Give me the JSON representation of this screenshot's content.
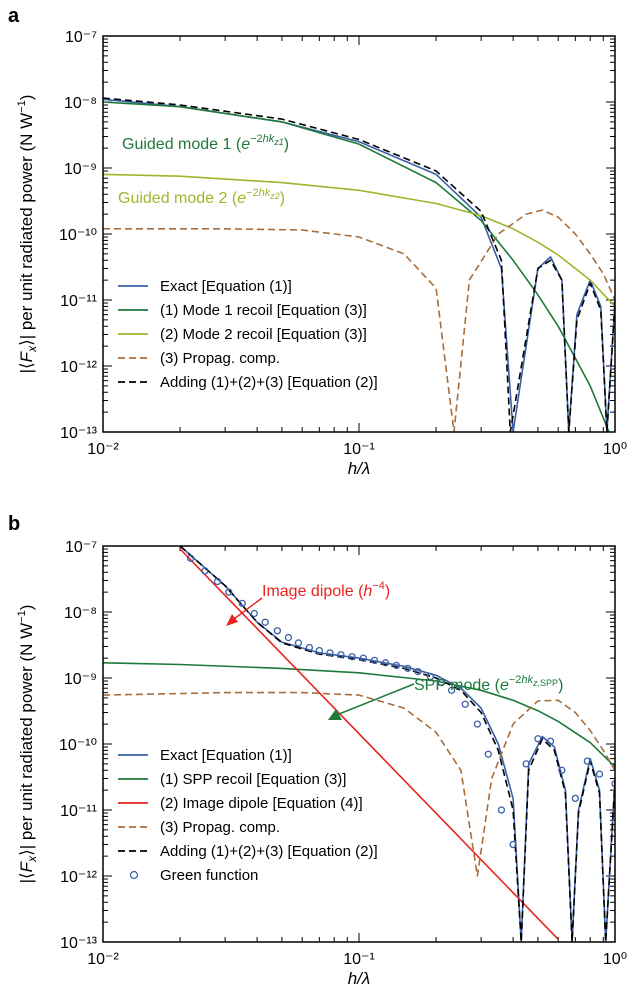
{
  "chart_data": [
    {
      "panel_label": "a",
      "type": "line",
      "xlabel": "h/λ",
      "ylabel": "|⟨F_x⟩| per unit radiated power (N W⁻¹)",
      "x_scale": "log",
      "y_scale": "log",
      "xlim": [
        0.01,
        1
      ],
      "ylim": [
        1e-13,
        1e-07
      ],
      "x_tick_labels": [
        "10⁻²",
        "10⁻¹",
        "10⁰"
      ],
      "y_tick_labels": [
        "10⁻¹³",
        "10⁻¹²",
        "10⁻¹¹",
        "10⁻¹⁰",
        "10⁻⁹",
        "10⁻⁸",
        "10⁻⁷"
      ],
      "legend_position": "bottom-left",
      "annotations": [
        {
          "text": "Guided mode 1 (e^{−2hk_{z1}})",
          "color": "#1e7a3c"
        },
        {
          "text": "Guided mode 2 (e^{−2hk_{z2}})",
          "color": "#9ab82c"
        }
      ],
      "series": [
        {
          "name": "Exact [Equation (1)]",
          "color": "#3a5fa8",
          "style": "solid",
          "x": [
            0.01,
            0.02,
            0.05,
            0.1,
            0.2,
            0.3,
            0.36,
            0.4,
            0.5,
            0.56,
            0.62,
            0.66,
            0.71,
            0.8,
            0.88,
            0.93,
            1.0
          ],
          "y": [
            1.1e-08,
            8.5e-09,
            5e-09,
            2.5e-09,
            8e-10,
            1.8e-10,
            3e-11,
            1e-13,
            3e-11,
            4.5e-11,
            2e-11,
            1e-13,
            6e-12,
            2e-11,
            8e-12,
            1e-13,
            1e-11
          ]
        },
        {
          "name": "(1) Mode 1 recoil [Equation (3)]",
          "color": "#1e7a3c",
          "style": "solid",
          "x": [
            0.01,
            0.02,
            0.05,
            0.1,
            0.2,
            0.3,
            0.4,
            0.5,
            0.6,
            0.8,
            1.0
          ],
          "y": [
            1e-08,
            8.5e-09,
            5e-09,
            2.3e-09,
            6e-10,
            1.6e-10,
            4e-11,
            1.2e-11,
            4e-12,
            5e-13,
            6e-14
          ]
        },
        {
          "name": "(2) Mode 2 recoil [Equation (3)]",
          "color": "#9ab82c",
          "style": "solid",
          "x": [
            0.01,
            0.02,
            0.05,
            0.1,
            0.2,
            0.3,
            0.4,
            0.5,
            0.6,
            0.8,
            1.0
          ],
          "y": [
            8e-10,
            7.5e-10,
            6e-10,
            4.6e-10,
            2.9e-10,
            1.9e-10,
            1.2e-10,
            7.5e-11,
            4.8e-11,
            2e-11,
            8e-12
          ]
        },
        {
          "name": "(3) Propag. comp.",
          "color": "#a86e3c",
          "style": "dashed",
          "x": [
            0.01,
            0.03,
            0.06,
            0.1,
            0.15,
            0.2,
            0.235,
            0.27,
            0.35,
            0.45,
            0.52,
            0.6,
            0.7,
            0.8,
            0.9,
            1.0
          ],
          "y": [
            1.2e-10,
            1.2e-10,
            1.15e-10,
            9e-11,
            5e-11,
            1.5e-11,
            1e-13,
            2e-11,
            1e-10,
            2e-10,
            2.3e-10,
            1.8e-10,
            1e-10,
            5e-11,
            2.5e-11,
            1e-11
          ]
        },
        {
          "name": "Adding (1)+(2)+(3) [Equation (2)]",
          "color": "#000000",
          "style": "dashed",
          "x": [
            0.01,
            0.02,
            0.05,
            0.1,
            0.2,
            0.3,
            0.36,
            0.39,
            0.5,
            0.56,
            0.62,
            0.66,
            0.71,
            0.8,
            0.88,
            0.93,
            1.0
          ],
          "y": [
            1.15e-08,
            9e-09,
            5.5e-09,
            2.7e-09,
            9e-10,
            2.2e-10,
            4e-11,
            1e-13,
            3e-11,
            4e-11,
            2e-11,
            1e-13,
            5e-12,
            1.8e-11,
            7e-12,
            1e-13,
            9e-12
          ]
        }
      ]
    },
    {
      "panel_label": "b",
      "type": "line",
      "xlabel": "h/λ",
      "ylabel": "|⟨F_x⟩| per unit radiated power (N W⁻¹)",
      "x_scale": "log",
      "y_scale": "log",
      "xlim": [
        0.01,
        1
      ],
      "ylim": [
        1e-13,
        1e-07
      ],
      "x_tick_labels": [
        "10⁻²",
        "10⁻¹",
        "10⁰"
      ],
      "y_tick_labels": [
        "10⁻¹³",
        "10⁻¹²",
        "10⁻¹¹",
        "10⁻¹⁰",
        "10⁻⁹",
        "10⁻⁸",
        "10⁻⁷"
      ],
      "legend_position": "bottom-left",
      "annotations": [
        {
          "text": "Image dipole (h^{−4})",
          "color": "#e8231e"
        },
        {
          "text": "SPP mode (e^{−2hk_{z,SPP}})",
          "color": "#1e7a3c"
        }
      ],
      "series": [
        {
          "name": "Exact [Equation (1)]",
          "color": "#3a5fa8",
          "style": "solid",
          "x": [
            0.02,
            0.03,
            0.04,
            0.05,
            0.07,
            0.1,
            0.15,
            0.2,
            0.25,
            0.3,
            0.35,
            0.4,
            0.43,
            0.46,
            0.52,
            0.58,
            0.64,
            0.68,
            0.72,
            0.8,
            0.87,
            0.92,
            1.0
          ],
          "y": [
            1e-07,
            2.5e-08,
            7e-09,
            3.5e-09,
            2.4e-09,
            2e-09,
            1.5e-09,
            1.1e-09,
            7e-10,
            3.5e-10,
            1e-10,
            1.5e-11,
            1e-13,
            5e-11,
            1.3e-10,
            9e-11,
            2e-11,
            1e-13,
            1e-11,
            6e-11,
            2e-11,
            1e-13,
            3e-11
          ]
        },
        {
          "name": "(1) SPP recoil [Equation (3)]",
          "color": "#1e7a3c",
          "style": "solid",
          "x": [
            0.01,
            0.02,
            0.05,
            0.1,
            0.2,
            0.3,
            0.4,
            0.5,
            0.6,
            0.8,
            1.0
          ],
          "y": [
            1.7e-09,
            1.6e-09,
            1.4e-09,
            1.2e-09,
            9e-10,
            6.5e-10,
            4.6e-10,
            3.2e-10,
            2.2e-10,
            1.05e-10,
            4.5e-11
          ]
        },
        {
          "name": "(2) Image dipole [Equation (4)]",
          "color": "#e8231e",
          "style": "solid",
          "x": [
            0.02,
            0.6
          ],
          "y": [
            9e-08,
            1.1e-13
          ]
        },
        {
          "name": "(3) Propag. comp.",
          "color": "#a86e3c",
          "style": "dashed",
          "x": [
            0.01,
            0.03,
            0.06,
            0.1,
            0.15,
            0.2,
            0.25,
            0.29,
            0.33,
            0.4,
            0.5,
            0.6,
            0.7,
            0.8,
            0.9,
            1.0
          ],
          "y": [
            5.5e-10,
            6e-10,
            6e-10,
            5.5e-10,
            3.5e-10,
            1.5e-10,
            4e-11,
            1e-12,
            3e-11,
            2e-10,
            4.5e-10,
            4.6e-10,
            3e-10,
            1.6e-10,
            8e-11,
            4e-11
          ]
        },
        {
          "name": "Adding (1)+(2)+(3) [Equation (2)]",
          "color": "#000000",
          "style": "dashed",
          "x": [
            0.02,
            0.03,
            0.04,
            0.05,
            0.07,
            0.1,
            0.15,
            0.2,
            0.25,
            0.3,
            0.35,
            0.4,
            0.43,
            0.46,
            0.52,
            0.58,
            0.64,
            0.68,
            0.72,
            0.8,
            0.87,
            0.92,
            1.0
          ],
          "y": [
            1e-07,
            2.5e-08,
            7e-09,
            3.4e-09,
            2.3e-09,
            1.9e-09,
            1.4e-09,
            1e-09,
            6.5e-10,
            3e-10,
            8e-11,
            1e-11,
            1e-13,
            4e-11,
            1.2e-10,
            8e-11,
            1.8e-11,
            1e-13,
            9e-12,
            5.5e-11,
            1.8e-11,
            1e-13,
            2.7e-11
          ]
        },
        {
          "name": "Green function",
          "color": "#3a5fa8",
          "style": "markers",
          "x": [
            0.022,
            0.025,
            0.028,
            0.031,
            0.035,
            0.039,
            0.043,
            0.048,
            0.053,
            0.058,
            0.064,
            0.07,
            0.077,
            0.085,
            0.094,
            0.104,
            0.115,
            0.127,
            0.14,
            0.155,
            0.17,
            0.19,
            0.21,
            0.23,
            0.26,
            0.29,
            0.32,
            0.36,
            0.4,
            0.45,
            0.5,
            0.56,
            0.62,
            0.7,
            0.78,
            0.87,
            1.0
          ],
          "y": [
            6.5e-08,
            4.2e-08,
            2.9e-08,
            2e-08,
            1.35e-08,
            9.5e-09,
            7e-09,
            5.2e-09,
            4.1e-09,
            3.4e-09,
            2.9e-09,
            2.6e-09,
            2.4e-09,
            2.25e-09,
            2.1e-09,
            2e-09,
            1.85e-09,
            1.7e-09,
            1.55e-09,
            1.4e-09,
            1.25e-09,
            1.05e-09,
            8.5e-10,
            6.5e-10,
            4e-10,
            2e-10,
            7e-11,
            1e-11,
            3e-12,
            5e-11,
            1.2e-10,
            1.1e-10,
            4e-11,
            1.5e-11,
            5.5e-11,
            3.5e-11,
            2.5e-11
          ]
        }
      ]
    }
  ]
}
